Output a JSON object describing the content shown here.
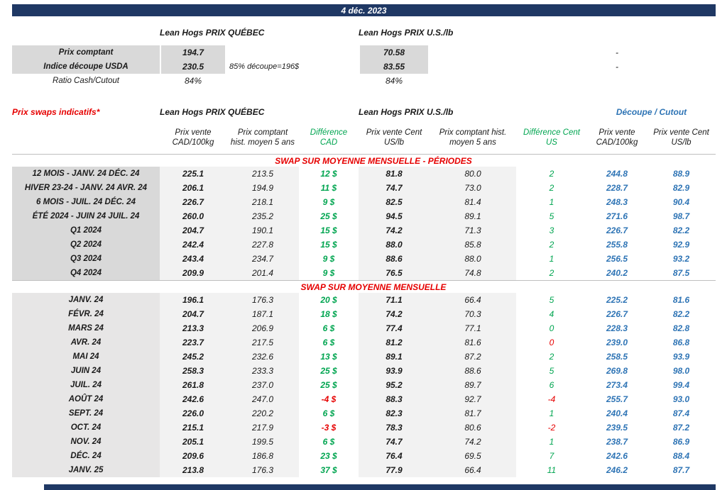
{
  "header": {
    "date": "4 déc. 2023"
  },
  "spot": {
    "quebec_title": "Lean Hogs PRIX QUÉBEC",
    "us_title": "Lean Hogs PRIX U.S./lb",
    "rows": [
      {
        "label": "Prix comptant",
        "qc": "194.7",
        "note": "",
        "us": "70.58",
        "right": "-"
      },
      {
        "label": "Indice découpe USDA",
        "qc": "230.5",
        "note": "85% découpe=196$",
        "us": "83.55",
        "right": "-"
      },
      {
        "label": "Ratio Cash/Cutout",
        "qc": "84%",
        "note": "",
        "us": "84%",
        "right": ""
      }
    ]
  },
  "swaps": {
    "title": "Prix swaps indicatifs*",
    "quebec_title": "Lean Hogs PRIX QUÉBEC",
    "us_title": "Lean Hogs PRIX U.S./lb",
    "cutout_title": "Découpe / Cutout",
    "col_headers": [
      "Prix vente CAD/100kg",
      "Prix comptant hist. moyen 5 ans",
      "Différence CAD",
      "Prix vente Cent US/lb",
      "Prix comptant hist. moyen 5 ans",
      "Différence Cent US",
      "Prix vente CAD/100kg",
      "Prix vente Cent US/lb"
    ],
    "sections": [
      {
        "title": "SWAP SUR MOYENNE MENSUELLE - PÉRIODES",
        "rows": [
          {
            "label": "12 MOIS - JANV. 24 DÉC. 24",
            "values": [
              "225.1",
              "213.5",
              "12 $",
              "81.8",
              "80.0",
              "2",
              "244.8",
              "88.9"
            ],
            "neg_cad": false,
            "neg_us": false
          },
          {
            "label": "HIVER 23-24 -  JANV. 24 AVR. 24",
            "values": [
              "206.1",
              "194.9",
              "11 $",
              "74.7",
              "73.0",
              "2",
              "228.7",
              "82.9"
            ],
            "neg_cad": false,
            "neg_us": false
          },
          {
            "label": "6 MOIS -  JUIL. 24 DÉC. 24",
            "values": [
              "226.7",
              "218.1",
              "9 $",
              "82.5",
              "81.4",
              "1",
              "248.3",
              "90.4"
            ],
            "neg_cad": false,
            "neg_us": false
          },
          {
            "label": "ÉTÉ 2024 - JUIN 24 JUIL. 24",
            "values": [
              "260.0",
              "235.2",
              "25 $",
              "94.5",
              "89.1",
              "5",
              "271.6",
              "98.7"
            ],
            "neg_cad": false,
            "neg_us": false
          },
          {
            "label": "Q1 2024",
            "values": [
              "204.7",
              "190.1",
              "15 $",
              "74.2",
              "71.3",
              "3",
              "226.7",
              "82.2"
            ],
            "neg_cad": false,
            "neg_us": false
          },
          {
            "label": "Q2 2024",
            "values": [
              "242.4",
              "227.8",
              "15 $",
              "88.0",
              "85.8",
              "2",
              "255.8",
              "92.9"
            ],
            "neg_cad": false,
            "neg_us": false
          },
          {
            "label": "Q3 2024",
            "values": [
              "243.4",
              "234.7",
              "9 $",
              "88.6",
              "88.0",
              "1",
              "256.5",
              "93.2"
            ],
            "neg_cad": false,
            "neg_us": false
          },
          {
            "label": "Q4 2024",
            "values": [
              "209.9",
              "201.4",
              "9 $",
              "76.5",
              "74.8",
              "2",
              "240.2",
              "87.5"
            ],
            "neg_cad": false,
            "neg_us": false
          }
        ]
      },
      {
        "title": "SWAP SUR MOYENNE MENSUELLE",
        "rows": [
          {
            "label": "JANV. 24",
            "values": [
              "196.1",
              "176.3",
              "20 $",
              "71.1",
              "66.4",
              "5",
              "225.2",
              "81.6"
            ],
            "neg_cad": false,
            "neg_us": false
          },
          {
            "label": "FÉVR. 24",
            "values": [
              "204.7",
              "187.1",
              "18 $",
              "74.2",
              "70.3",
              "4",
              "226.7",
              "82.2"
            ],
            "neg_cad": false,
            "neg_us": false
          },
          {
            "label": "MARS 24",
            "values": [
              "213.3",
              "206.9",
              "6 $",
              "77.4",
              "77.1",
              "0",
              "228.3",
              "82.8"
            ],
            "neg_cad": false,
            "neg_us": false
          },
          {
            "label": "AVR. 24",
            "values": [
              "223.7",
              "217.5",
              "6 $",
              "81.2",
              "81.6",
              "0",
              "239.0",
              "86.8"
            ],
            "neg_cad": false,
            "neg_us": true
          },
          {
            "label": "MAI 24",
            "values": [
              "245.2",
              "232.6",
              "13 $",
              "89.1",
              "87.2",
              "2",
              "258.5",
              "93.9"
            ],
            "neg_cad": false,
            "neg_us": false
          },
          {
            "label": "JUIN 24",
            "values": [
              "258.3",
              "233.3",
              "25 $",
              "93.9",
              "88.6",
              "5",
              "269.8",
              "98.0"
            ],
            "neg_cad": false,
            "neg_us": false
          },
          {
            "label": "JUIL. 24",
            "values": [
              "261.8",
              "237.0",
              "25 $",
              "95.2",
              "89.7",
              "6",
              "273.4",
              "99.4"
            ],
            "neg_cad": false,
            "neg_us": false
          },
          {
            "label": "AOÛT 24",
            "values": [
              "242.6",
              "247.0",
              "-4 $",
              "88.3",
              "92.7",
              "-4",
              "255.7",
              "93.0"
            ],
            "neg_cad": true,
            "neg_us": true
          },
          {
            "label": "SEPT. 24",
            "values": [
              "226.0",
              "220.2",
              "6 $",
              "82.3",
              "81.7",
              "1",
              "240.4",
              "87.4"
            ],
            "neg_cad": false,
            "neg_us": false
          },
          {
            "label": "OCT. 24",
            "values": [
              "215.1",
              "217.9",
              "-3 $",
              "78.3",
              "80.6",
              "-2",
              "239.5",
              "87.2"
            ],
            "neg_cad": true,
            "neg_us": true
          },
          {
            "label": "NOV. 24",
            "values": [
              "205.1",
              "199.5",
              "6 $",
              "74.7",
              "74.2",
              "1",
              "238.7",
              "86.9"
            ],
            "neg_cad": false,
            "neg_us": false
          },
          {
            "label": "DÉC. 24",
            "values": [
              "209.6",
              "186.8",
              "23 $",
              "76.4",
              "69.5",
              "7",
              "242.6",
              "88.4"
            ],
            "neg_cad": false,
            "neg_us": false
          },
          {
            "label": "JANV. 25",
            "values": [
              "213.8",
              "176.3",
              "37 $",
              "77.9",
              "66.4",
              "11",
              "246.2",
              "87.7"
            ],
            "neg_cad": false,
            "neg_us": false
          }
        ]
      }
    ]
  }
}
